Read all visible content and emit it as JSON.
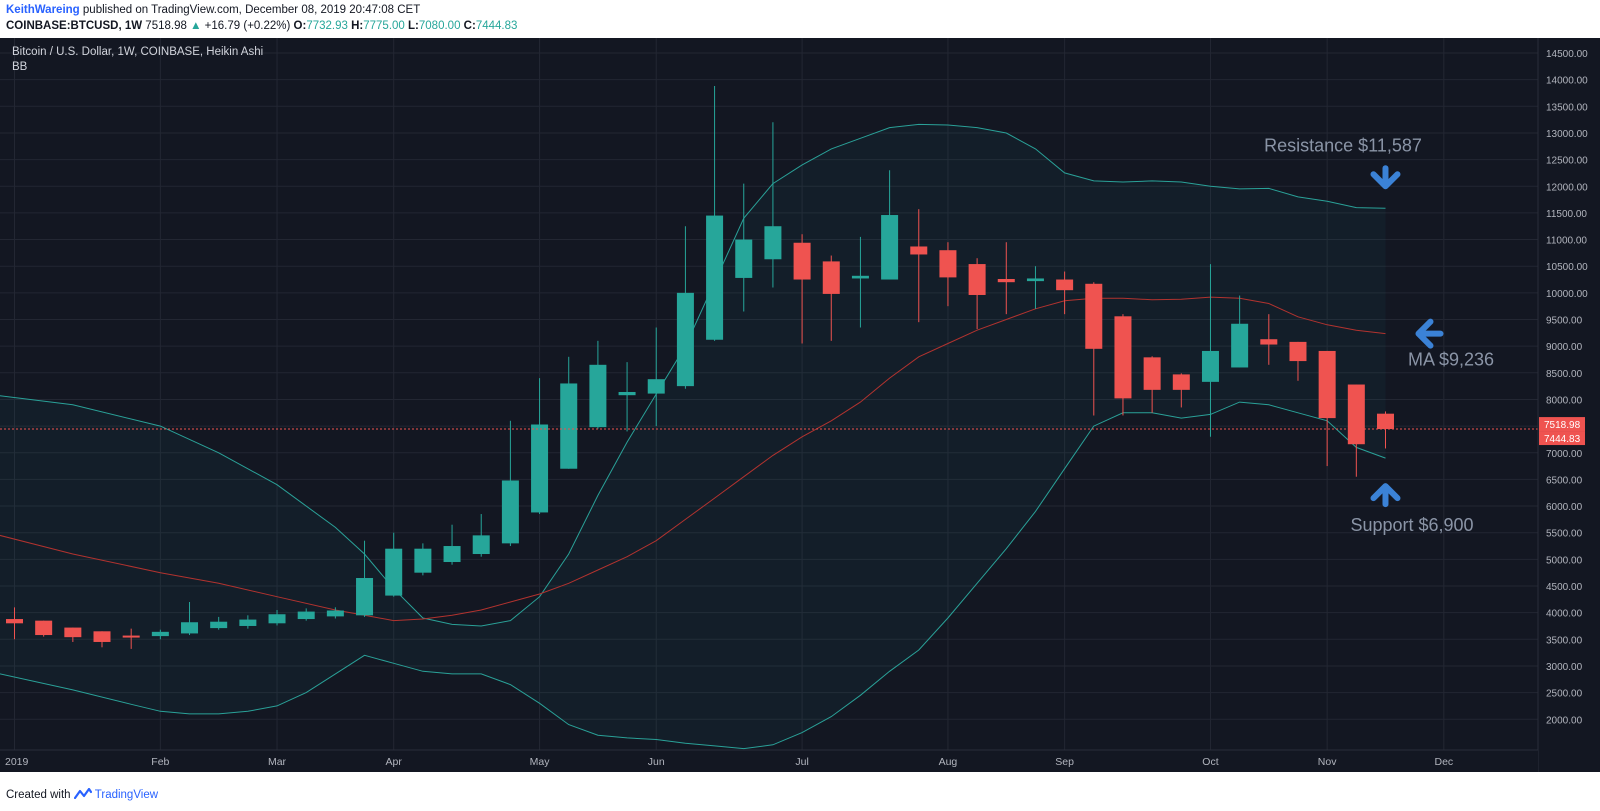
{
  "header": {
    "author": "KeithWareing",
    "published": "published on TradingView.com, December 08, 2019 20:47:08 CET",
    "symbol": "COINBASE:BTCUSD, 1W",
    "last": "7518.98",
    "change_arrow": "▲",
    "change": "+16.79 (+0.22%)",
    "o_label": "O:",
    "o": "7732.93",
    "h_label": "H:",
    "h": "7775.00",
    "l_label": "L:",
    "l": "7080.00",
    "c_label": "C:",
    "c": "7444.83"
  },
  "footer": {
    "created_with": "Created with",
    "brand": "TradingView",
    "brand_icon": "tradingview-logo-icon"
  },
  "chart_data": {
    "type": "candlestick",
    "title": "Bitcoin / U.S. Dollar, 1W, COINBASE, Heikin Ashi",
    "indicator": "BB",
    "style": "Heikin Ashi",
    "interval": "1W",
    "colors": {
      "up": "#26a69a",
      "down": "#ef5350",
      "background": "#131722",
      "bb_band": "#2aa198",
      "bb_basis": "#b2332f",
      "price_line": "#ef5350",
      "annotation_arrow": "#3b82d6",
      "annotation_text": "#8a94a6"
    },
    "ylim": [
      1500,
      14900
    ],
    "y_ticks": [
      "14500.00",
      "14000.00",
      "13500.00",
      "13000.00",
      "12500.00",
      "12000.00",
      "11500.00",
      "11000.00",
      "10500.00",
      "10000.00",
      "9500.00",
      "9000.00",
      "8500.00",
      "8000.00",
      "7500.00",
      "7000.00",
      "6500.00",
      "6000.00",
      "5500.00",
      "5000.00",
      "4500.00",
      "4000.00",
      "3500.00",
      "3000.00",
      "2500.00",
      "2000.00"
    ],
    "x_ticks": [
      {
        "label": "2019",
        "week": 0
      },
      {
        "label": "Feb",
        "week": 5
      },
      {
        "label": "Mar",
        "week": 9
      },
      {
        "label": "Apr",
        "week": 13
      },
      {
        "label": "May",
        "week": 18
      },
      {
        "label": "Jun",
        "week": 22
      },
      {
        "label": "Jul",
        "week": 27
      },
      {
        "label": "Aug",
        "week": 32
      },
      {
        "label": "Sep",
        "week": 36
      },
      {
        "label": "Oct",
        "week": 41
      },
      {
        "label": "Nov",
        "week": 45
      },
      {
        "label": "Dec",
        "week": 49
      }
    ],
    "candles": [
      {
        "o": 3880,
        "h": 4100,
        "l": 3500,
        "c": 3800
      },
      {
        "o": 3850,
        "h": 3850,
        "l": 3550,
        "c": 3580
      },
      {
        "o": 3720,
        "h": 3720,
        "l": 3450,
        "c": 3540
      },
      {
        "o": 3650,
        "h": 3650,
        "l": 3350,
        "c": 3450
      },
      {
        "o": 3570,
        "h": 3700,
        "l": 3320,
        "c": 3540
      },
      {
        "o": 3560,
        "h": 3680,
        "l": 3500,
        "c": 3640
      },
      {
        "o": 3610,
        "h": 4200,
        "l": 3580,
        "c": 3820
      },
      {
        "o": 3710,
        "h": 3920,
        "l": 3680,
        "c": 3830
      },
      {
        "o": 3750,
        "h": 3950,
        "l": 3700,
        "c": 3870
      },
      {
        "o": 3800,
        "h": 4050,
        "l": 3760,
        "c": 3970
      },
      {
        "o": 3880,
        "h": 4080,
        "l": 3850,
        "c": 4020
      },
      {
        "o": 3930,
        "h": 4100,
        "l": 3890,
        "c": 4040
      },
      {
        "o": 3950,
        "h": 5350,
        "l": 3920,
        "c": 4650
      },
      {
        "o": 4320,
        "h": 5500,
        "l": 4300,
        "c": 5200
      },
      {
        "o": 4750,
        "h": 5300,
        "l": 4700,
        "c": 5200
      },
      {
        "o": 4950,
        "h": 5650,
        "l": 4900,
        "c": 5250
      },
      {
        "o": 5100,
        "h": 5850,
        "l": 5050,
        "c": 5450
      },
      {
        "o": 5300,
        "h": 7600,
        "l": 5250,
        "c": 6480
      },
      {
        "o": 5880,
        "h": 8400,
        "l": 5850,
        "c": 7530
      },
      {
        "o": 6700,
        "h": 8800,
        "l": 6700,
        "c": 8300
      },
      {
        "o": 7480,
        "h": 9100,
        "l": 7450,
        "c": 8650
      },
      {
        "o": 8080,
        "h": 8700,
        "l": 7400,
        "c": 8140
      },
      {
        "o": 8110,
        "h": 9350,
        "l": 7500,
        "c": 8380
      },
      {
        "o": 8250,
        "h": 11250,
        "l": 8200,
        "c": 10000
      },
      {
        "o": 9120,
        "h": 13880,
        "l": 9100,
        "c": 11450
      },
      {
        "o": 10280,
        "h": 12050,
        "l": 9650,
        "c": 11000
      },
      {
        "o": 10630,
        "h": 13200,
        "l": 10100,
        "c": 11250
      },
      {
        "o": 10940,
        "h": 11100,
        "l": 9050,
        "c": 10250
      },
      {
        "o": 10590,
        "h": 10700,
        "l": 9100,
        "c": 9980
      },
      {
        "o": 10270,
        "h": 11050,
        "l": 9350,
        "c": 10320
      },
      {
        "o": 10250,
        "h": 12300,
        "l": 10250,
        "c": 11460
      },
      {
        "o": 10870,
        "h": 11570,
        "l": 9450,
        "c": 10720
      },
      {
        "o": 10800,
        "h": 10950,
        "l": 9750,
        "c": 10290
      },
      {
        "o": 10540,
        "h": 10650,
        "l": 9320,
        "c": 9960
      },
      {
        "o": 10260,
        "h": 10950,
        "l": 9600,
        "c": 10200
      },
      {
        "o": 10220,
        "h": 10500,
        "l": 9700,
        "c": 10270
      },
      {
        "o": 10250,
        "h": 10400,
        "l": 9600,
        "c": 10050
      },
      {
        "o": 10170,
        "h": 10200,
        "l": 7700,
        "c": 8950
      },
      {
        "o": 9560,
        "h": 9600,
        "l": 7700,
        "c": 8020
      },
      {
        "o": 8790,
        "h": 8810,
        "l": 7750,
        "c": 8180
      },
      {
        "o": 8470,
        "h": 8490,
        "l": 7850,
        "c": 8180
      },
      {
        "o": 8330,
        "h": 10540,
        "l": 7300,
        "c": 8910
      },
      {
        "o": 8600,
        "h": 9950,
        "l": 8600,
        "c": 9420
      },
      {
        "o": 9130,
        "h": 9600,
        "l": 8650,
        "c": 9030
      },
      {
        "o": 9080,
        "h": 9080,
        "l": 8350,
        "c": 8720
      },
      {
        "o": 8910,
        "h": 8910,
        "l": 6750,
        "c": 7650
      },
      {
        "o": 8280,
        "h": 8280,
        "l": 6550,
        "c": 7160
      },
      {
        "o": 7733,
        "h": 7775,
        "l": 7080,
        "c": 7445
      }
    ],
    "bollinger": {
      "upper": [
        [
          -0.5,
          8070
        ],
        [
          2,
          7900
        ],
        [
          5,
          7500
        ],
        [
          7,
          7000
        ],
        [
          9,
          6400
        ],
        [
          11,
          5600
        ],
        [
          12,
          5100
        ],
        [
          13,
          4450
        ],
        [
          14,
          3900
        ],
        [
          15,
          3780
        ],
        [
          16,
          3750
        ],
        [
          17,
          3850
        ],
        [
          18,
          4300
        ],
        [
          19,
          5100
        ],
        [
          20,
          6200
        ],
        [
          21,
          7200
        ],
        [
          22,
          8100
        ],
        [
          23,
          9000
        ],
        [
          24,
          10200
        ],
        [
          25,
          11400
        ],
        [
          26,
          12050
        ],
        [
          27,
          12400
        ],
        [
          28,
          12700
        ],
        [
          29,
          12900
        ],
        [
          30,
          13100
        ],
        [
          31,
          13160
        ],
        [
          32,
          13150
        ],
        [
          33,
          13100
        ],
        [
          34,
          13000
        ],
        [
          35,
          12700
        ],
        [
          36,
          12250
        ],
        [
          37,
          12100
        ],
        [
          38,
          12080
        ],
        [
          39,
          12100
        ],
        [
          40,
          12080
        ],
        [
          41,
          12000
        ],
        [
          42,
          11950
        ],
        [
          43,
          11960
        ],
        [
          44,
          11800
        ],
        [
          45,
          11720
        ],
        [
          46,
          11600
        ],
        [
          47,
          11587
        ]
      ],
      "basis": [
        [
          -0.5,
          5450
        ],
        [
          2,
          5100
        ],
        [
          5,
          4750
        ],
        [
          7,
          4550
        ],
        [
          9,
          4300
        ],
        [
          11,
          4050
        ],
        [
          12,
          3950
        ],
        [
          13,
          3850
        ],
        [
          14,
          3880
        ],
        [
          15,
          3950
        ],
        [
          16,
          4050
        ],
        [
          17,
          4200
        ],
        [
          18,
          4350
        ],
        [
          19,
          4550
        ],
        [
          20,
          4800
        ],
        [
          21,
          5050
        ],
        [
          22,
          5350
        ],
        [
          23,
          5750
        ],
        [
          24,
          6150
        ],
        [
          25,
          6550
        ],
        [
          26,
          6950
        ],
        [
          27,
          7300
        ],
        [
          28,
          7600
        ],
        [
          29,
          7950
        ],
        [
          30,
          8400
        ],
        [
          31,
          8800
        ],
        [
          32,
          9050
        ],
        [
          33,
          9300
        ],
        [
          34,
          9500
        ],
        [
          35,
          9700
        ],
        [
          36,
          9850
        ],
        [
          37,
          9900
        ],
        [
          38,
          9900
        ],
        [
          39,
          9870
        ],
        [
          40,
          9880
        ],
        [
          41,
          9920
        ],
        [
          42,
          9900
        ],
        [
          43,
          9800
        ],
        [
          44,
          9550
        ],
        [
          45,
          9400
        ],
        [
          46,
          9300
        ],
        [
          47,
          9236
        ]
      ],
      "lower": [
        [
          -0.5,
          2850
        ],
        [
          2,
          2550
        ],
        [
          4,
          2280
        ],
        [
          5,
          2150
        ],
        [
          6,
          2100
        ],
        [
          7,
          2100
        ],
        [
          8,
          2150
        ],
        [
          9,
          2250
        ],
        [
          10,
          2500
        ],
        [
          11,
          2850
        ],
        [
          12,
          3200
        ],
        [
          13,
          3050
        ],
        [
          14,
          2900
        ],
        [
          15,
          2850
        ],
        [
          16,
          2850
        ],
        [
          17,
          2650
        ],
        [
          18,
          2300
        ],
        [
          19,
          1900
        ],
        [
          20,
          1700
        ],
        [
          21,
          1650
        ],
        [
          22,
          1620
        ],
        [
          23,
          1550
        ],
        [
          24,
          1500
        ],
        [
          25,
          1450
        ],
        [
          26,
          1520
        ],
        [
          27,
          1750
        ],
        [
          28,
          2050
        ],
        [
          29,
          2450
        ],
        [
          30,
          2900
        ],
        [
          31,
          3300
        ],
        [
          32,
          3900
        ],
        [
          33,
          4550
        ],
        [
          34,
          5200
        ],
        [
          35,
          5900
        ],
        [
          36,
          6700
        ],
        [
          37,
          7500
        ],
        [
          38,
          7750
        ],
        [
          39,
          7750
        ],
        [
          40,
          7650
        ],
        [
          41,
          7720
        ],
        [
          42,
          7950
        ],
        [
          43,
          7900
        ],
        [
          44,
          7750
        ],
        [
          45,
          7600
        ],
        [
          46,
          7100
        ],
        [
          47,
          6900
        ]
      ]
    },
    "price_line": 7444.83,
    "price_tags": [
      {
        "label": "7518.98",
        "value": 7518.98,
        "color": "#ef5350"
      },
      {
        "label": "7444.83",
        "value": 7444.83,
        "color": "#ef5350"
      }
    ],
    "annotations": [
      {
        "text": "Resistance $11,587",
        "arrow": "down",
        "week": 47,
        "value": 11587
      },
      {
        "text": "MA $9,236",
        "arrow": "left",
        "week": 47,
        "value": 9236
      },
      {
        "text": "Support $6,900",
        "arrow": "up",
        "week": 47,
        "value": 6900
      }
    ]
  }
}
